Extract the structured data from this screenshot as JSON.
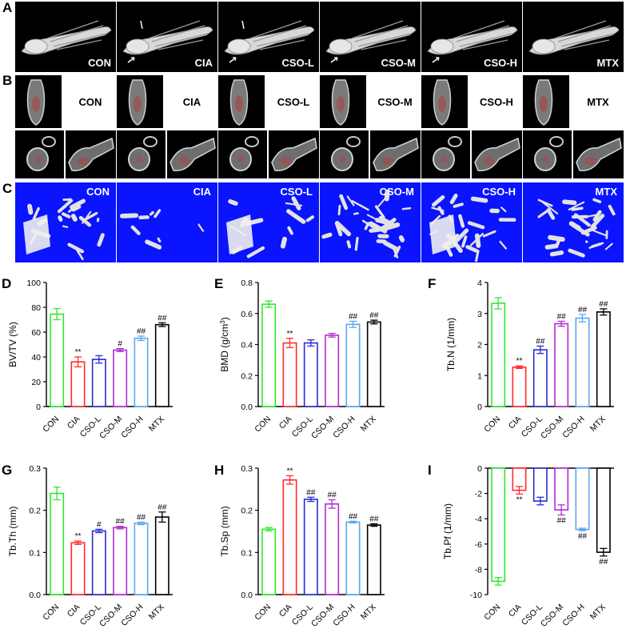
{
  "panel_letters": [
    "A",
    "B",
    "C",
    "D",
    "E",
    "F",
    "G",
    "H",
    "I"
  ],
  "groups": [
    "CON",
    "CIA",
    "CSO-L",
    "CSO-M",
    "CSO-H",
    "MTX"
  ],
  "colors": {
    "CON": "#2ee82e",
    "CIA": "#ff2b2b",
    "CSO-L": "#2a2ad4",
    "CSO-M": "#b22bd4",
    "CSO-H": "#5aa8f0",
    "MTX": "#000000",
    "panelC_bg": "#0a14ff"
  },
  "chart_data": [
    {
      "panel": "D",
      "type": "bar",
      "categories": [
        "CON",
        "CIA",
        "CSO-L",
        "CSO-M",
        "CSO-H",
        "MTX"
      ],
      "values": [
        74.5,
        36,
        38,
        45.5,
        55,
        66
      ],
      "errors": [
        4.5,
        4,
        3,
        1.2,
        1.8,
        1.5
      ],
      "annotations": [
        "",
        "**",
        "",
        "#",
        "##",
        "##"
      ],
      "ylabel": "BV/TV (%)",
      "ylim": [
        0,
        100
      ],
      "yticks": [
        "0",
        "20",
        "40",
        "60",
        "80",
        "100"
      ],
      "ytick_values": [
        0,
        20,
        40,
        60,
        80,
        100
      ]
    },
    {
      "panel": "E",
      "type": "bar",
      "categories": [
        "CON",
        "CIA",
        "CSO-L",
        "CSO-M",
        "CSO-H",
        "MTX"
      ],
      "values": [
        0.66,
        0.41,
        0.41,
        0.46,
        0.53,
        0.545
      ],
      "errors": [
        0.02,
        0.03,
        0.02,
        0.012,
        0.02,
        0.012
      ],
      "annotations": [
        "",
        "**",
        "",
        "",
        "##",
        "##"
      ],
      "ylabel": "BMD (g/cm",
      "ylabel_sup": "3",
      "ylabel_end": ")",
      "ylim": [
        0,
        0.8
      ],
      "yticks": [
        "0.0",
        "0.2",
        "0.4",
        "0.6",
        "0.8"
      ],
      "ytick_values": [
        0,
        0.2,
        0.4,
        0.6,
        0.8
      ]
    },
    {
      "panel": "F",
      "type": "bar",
      "categories": [
        "CON",
        "CIA",
        "CSO-L",
        "CSO-M",
        "CSO-H",
        "MTX"
      ],
      "values": [
        3.33,
        1.27,
        1.83,
        2.67,
        2.85,
        3.05
      ],
      "errors": [
        0.18,
        0.04,
        0.12,
        0.08,
        0.12,
        0.1
      ],
      "annotations": [
        "",
        "**",
        "##",
        "##",
        "##",
        "##"
      ],
      "ylabel": "Tb.N (1/mm)",
      "ylim": [
        0,
        4
      ],
      "yticks": [
        "0",
        "1",
        "2",
        "3",
        "4"
      ],
      "ytick_values": [
        0,
        1,
        2,
        3,
        4
      ]
    },
    {
      "panel": "G",
      "type": "bar",
      "categories": [
        "CON",
        "CIA",
        "CSO-L",
        "CSO-M",
        "CSO-H",
        "MTX"
      ],
      "values": [
        0.24,
        0.123,
        0.151,
        0.159,
        0.169,
        0.184
      ],
      "errors": [
        0.015,
        0.004,
        0.004,
        0.003,
        0.003,
        0.012
      ],
      "annotations": [
        "",
        "**",
        "#",
        "##",
        "##",
        "##"
      ],
      "ylabel": "Tb.Th (mm)",
      "ylim": [
        0,
        0.3
      ],
      "yticks": [
        "0.0",
        "0.1",
        "0.2",
        "0.3"
      ],
      "ytick_values": [
        0,
        0.1,
        0.2,
        0.3
      ]
    },
    {
      "panel": "H",
      "type": "bar",
      "categories": [
        "CON",
        "CIA",
        "CSO-L",
        "CSO-M",
        "CSO-H",
        "MTX"
      ],
      "values": [
        0.155,
        0.272,
        0.226,
        0.215,
        0.172,
        0.165
      ],
      "errors": [
        0.004,
        0.01,
        0.005,
        0.01,
        0.002,
        0.003
      ],
      "annotations": [
        "",
        "**",
        "##",
        "##",
        "##",
        "##"
      ],
      "ylabel": "Tb.Sp (mm)",
      "ylim": [
        0,
        0.3
      ],
      "yticks": [
        "0.0",
        "0.1",
        "0.2",
        "0.3"
      ],
      "ytick_values": [
        0,
        0.1,
        0.2,
        0.3
      ]
    },
    {
      "panel": "I",
      "type": "bar",
      "categories": [
        "CON",
        "CIA",
        "CSO-L",
        "CSO-M",
        "CSO-H",
        "MTX"
      ],
      "values": [
        -8.95,
        -1.75,
        -2.6,
        -3.3,
        -4.85,
        -6.65
      ],
      "errors": [
        0.3,
        0.3,
        0.3,
        0.4,
        0.1,
        0.3
      ],
      "annotations": [
        "",
        "**",
        "",
        "##",
        "##",
        "##"
      ],
      "ylabel": "Tb.Pf (1/mm)",
      "ylim": [
        -10,
        0
      ],
      "yticks": [
        "-10",
        "-8",
        "-6",
        "-4",
        "-2",
        "0"
      ],
      "ytick_values": [
        -10,
        -8,
        -6,
        -4,
        -2,
        0
      ]
    }
  ]
}
